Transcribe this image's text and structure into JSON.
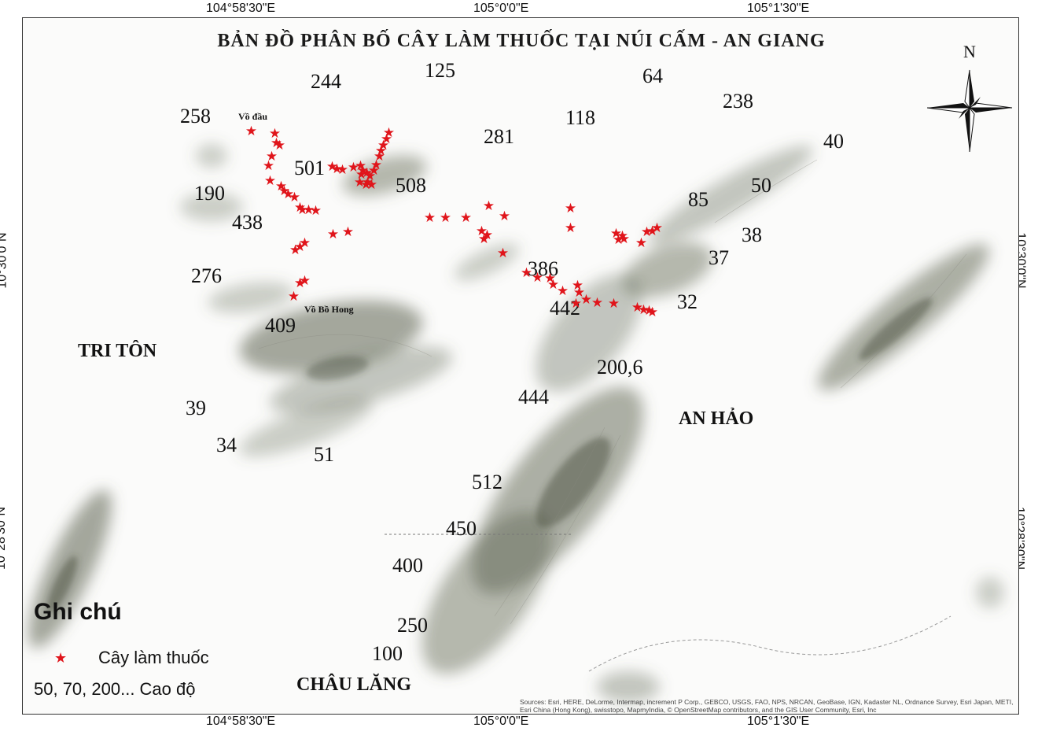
{
  "coordinates": {
    "top": [
      "104°58'30\"E",
      "105°0'0\"E",
      "105°1'30\"E"
    ],
    "bottom": [
      "104°58'30\"E",
      "105°0'0\"E",
      "105°1'30\"E"
    ],
    "left": [
      "10°30'0\"N",
      "10°28'30\"N"
    ],
    "right": [
      "10°30'0\"N",
      "10°28'30\"N"
    ]
  },
  "title": "BẢN ĐỒ PHÂN BỐ CÂY LÀM THUỐC TẠI NÚI CẤM - AN GIANG",
  "north_label": "N",
  "places": {
    "tri_ton": "TRI TÔN",
    "an_hao": "AN HẢO",
    "chau_lang": "CHÂU LĂNG"
  },
  "peaks": {
    "vo_dau": "Vồ đầu",
    "vo_bo_hong": "Vồ Bồ Hong"
  },
  "elevations": [
    "244",
    "125",
    "64",
    "238",
    "258",
    "118",
    "281",
    "40",
    "501",
    "508",
    "190",
    "50",
    "85",
    "438",
    "38",
    "37",
    "386",
    "276",
    "32",
    "442",
    "409",
    "200,6",
    "444",
    "39",
    "34",
    "51",
    "512",
    "450",
    "400",
    "250",
    "100"
  ],
  "legend": {
    "title": "Ghi chú",
    "star_label": "Cây làm thuốc",
    "elevation_label": "50, 70, 200... Cao độ"
  },
  "attribution": "Sources: Esri, HERE, DeLorme, Intermap, increment P Corp., GEBCO, USGS, FAO, NPS, NRCAN, GeoBase, IGN, Kadaster NL, Ordnance Survey, Esri Japan, METI, Esri China (Hong Kong), swisstopo, MapmyIndia, © OpenStreetMap contributors, and the GIS User Community, Esri, Inc",
  "colors": {
    "star": "#e0151b",
    "terrain": "#5d6350"
  }
}
